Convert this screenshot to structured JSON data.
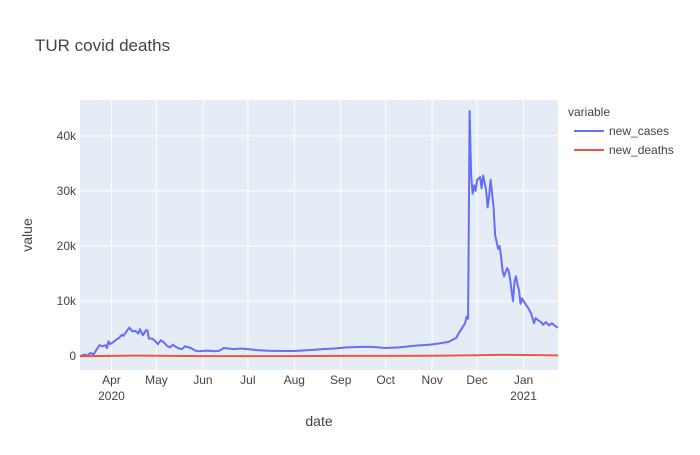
{
  "chart_data": {
    "type": "line",
    "title": "TUR covid deaths",
    "xlabel": "date",
    "ylabel": "value",
    "legend_title": "variable",
    "legend_position": "right",
    "grid": true,
    "x_range": [
      "2020-03-11",
      "2021-01-24"
    ],
    "ylim": [
      -2500,
      46500
    ],
    "y_ticks": [
      {
        "value": 0,
        "label": "0"
      },
      {
        "value": 10000,
        "label": "10k"
      },
      {
        "value": 20000,
        "label": "20k"
      },
      {
        "value": 30000,
        "label": "30k"
      },
      {
        "value": 40000,
        "label": "40k"
      }
    ],
    "x_ticks": [
      {
        "date": "2020-04-01",
        "label": "Apr",
        "sublabel": "2020"
      },
      {
        "date": "2020-05-01",
        "label": "May",
        "sublabel": ""
      },
      {
        "date": "2020-06-01",
        "label": "Jun",
        "sublabel": ""
      },
      {
        "date": "2020-07-01",
        "label": "Jul",
        "sublabel": ""
      },
      {
        "date": "2020-08-01",
        "label": "Aug",
        "sublabel": ""
      },
      {
        "date": "2020-09-01",
        "label": "Sep",
        "sublabel": ""
      },
      {
        "date": "2020-10-01",
        "label": "Oct",
        "sublabel": ""
      },
      {
        "date": "2020-11-01",
        "label": "Nov",
        "sublabel": ""
      },
      {
        "date": "2020-12-01",
        "label": "Dec",
        "sublabel": ""
      },
      {
        "date": "2021-01-01",
        "label": "Jan",
        "sublabel": "2021"
      }
    ],
    "series": [
      {
        "name": "new_cases",
        "color": "#636efa",
        "points": [
          [
            "2020-03-11",
            0
          ],
          [
            "2020-03-14",
            300
          ],
          [
            "2020-03-16",
            100
          ],
          [
            "2020-03-18",
            600
          ],
          [
            "2020-03-20",
            300
          ],
          [
            "2020-03-22",
            1200
          ],
          [
            "2020-03-24",
            2000
          ],
          [
            "2020-03-26",
            1800
          ],
          [
            "2020-03-28",
            2000
          ],
          [
            "2020-03-29",
            1500
          ],
          [
            "2020-03-30",
            2700
          ],
          [
            "2020-03-31",
            2200
          ],
          [
            "2020-04-02",
            2500
          ],
          [
            "2020-04-04",
            3000
          ],
          [
            "2020-04-06",
            3300
          ],
          [
            "2020-04-08",
            3900
          ],
          [
            "2020-04-09",
            3700
          ],
          [
            "2020-04-11",
            4500
          ],
          [
            "2020-04-13",
            5200
          ],
          [
            "2020-04-15",
            4500
          ],
          [
            "2020-04-17",
            4600
          ],
          [
            "2020-04-19",
            4100
          ],
          [
            "2020-04-20",
            4900
          ],
          [
            "2020-04-22",
            3800
          ],
          [
            "2020-04-24",
            4700
          ],
          [
            "2020-04-25",
            4700
          ],
          [
            "2020-04-26",
            3200
          ],
          [
            "2020-04-28",
            3200
          ],
          [
            "2020-04-30",
            2800
          ],
          [
            "2020-05-02",
            2200
          ],
          [
            "2020-05-04",
            2900
          ],
          [
            "2020-05-06",
            2500
          ],
          [
            "2020-05-08",
            1900
          ],
          [
            "2020-05-10",
            1600
          ],
          [
            "2020-05-12",
            2100
          ],
          [
            "2020-05-14",
            1700
          ],
          [
            "2020-05-16",
            1400
          ],
          [
            "2020-05-18",
            1300
          ],
          [
            "2020-05-20",
            1800
          ],
          [
            "2020-05-24",
            1500
          ],
          [
            "2020-05-27",
            1000
          ],
          [
            "2020-05-30",
            900
          ],
          [
            "2020-06-02",
            1000
          ],
          [
            "2020-06-05",
            1000
          ],
          [
            "2020-06-08",
            900
          ],
          [
            "2020-06-12",
            1000
          ],
          [
            "2020-06-15",
            1500
          ],
          [
            "2020-06-18",
            1400
          ],
          [
            "2020-06-22",
            1300
          ],
          [
            "2020-06-26",
            1400
          ],
          [
            "2020-07-01",
            1300
          ],
          [
            "2020-07-08",
            1100
          ],
          [
            "2020-07-15",
            1000
          ],
          [
            "2020-07-25",
            950
          ],
          [
            "2020-08-01",
            950
          ],
          [
            "2020-08-10",
            1100
          ],
          [
            "2020-08-20",
            1300
          ],
          [
            "2020-08-28",
            1400
          ],
          [
            "2020-09-05",
            1600
          ],
          [
            "2020-09-15",
            1700
          ],
          [
            "2020-09-22",
            1700
          ],
          [
            "2020-10-01",
            1500
          ],
          [
            "2020-10-10",
            1600
          ],
          [
            "2020-10-20",
            1900
          ],
          [
            "2020-10-30",
            2100
          ],
          [
            "2020-11-05",
            2300
          ],
          [
            "2020-11-12",
            2600
          ],
          [
            "2020-11-17",
            3300
          ],
          [
            "2020-11-20",
            4700
          ],
          [
            "2020-11-23",
            6000
          ],
          [
            "2020-11-24",
            7200
          ],
          [
            "2020-11-25",
            6800
          ],
          [
            "2020-11-26",
            44500
          ],
          [
            "2020-11-27",
            33000
          ],
          [
            "2020-11-28",
            29500
          ],
          [
            "2020-11-29",
            31000
          ],
          [
            "2020-11-30",
            30000
          ],
          [
            "2020-12-01",
            32000
          ],
          [
            "2020-12-03",
            32500
          ],
          [
            "2020-12-04",
            30500
          ],
          [
            "2020-12-05",
            32800
          ],
          [
            "2020-12-06",
            31500
          ],
          [
            "2020-12-07",
            30200
          ],
          [
            "2020-12-08",
            27000
          ],
          [
            "2020-12-09",
            29000
          ],
          [
            "2020-12-10",
            32000
          ],
          [
            "2020-12-12",
            27000
          ],
          [
            "2020-12-13",
            22000
          ],
          [
            "2020-12-15",
            19500
          ],
          [
            "2020-12-16",
            20000
          ],
          [
            "2020-12-17",
            18000
          ],
          [
            "2020-12-18",
            15500
          ],
          [
            "2020-12-19",
            14500
          ],
          [
            "2020-12-21",
            16000
          ],
          [
            "2020-12-22",
            15500
          ],
          [
            "2020-12-23",
            14000
          ],
          [
            "2020-12-24",
            12000
          ],
          [
            "2020-12-25",
            10000
          ],
          [
            "2020-12-26",
            13500
          ],
          [
            "2020-12-27",
            14500
          ],
          [
            "2020-12-28",
            13000
          ],
          [
            "2020-12-29",
            12000
          ],
          [
            "2020-12-30",
            9500
          ],
          [
            "2020-12-31",
            10500
          ],
          [
            "2021-01-01",
            10000
          ],
          [
            "2021-01-02",
            9600
          ],
          [
            "2021-01-04",
            8800
          ],
          [
            "2021-01-06",
            7800
          ],
          [
            "2021-01-08",
            6000
          ],
          [
            "2021-01-09",
            6900
          ],
          [
            "2021-01-11",
            6500
          ],
          [
            "2021-01-13",
            6100
          ],
          [
            "2021-01-14",
            5700
          ],
          [
            "2021-01-16",
            6200
          ],
          [
            "2021-01-18",
            5600
          ],
          [
            "2021-01-20",
            6000
          ],
          [
            "2021-01-22",
            5500
          ],
          [
            "2021-01-24",
            5200
          ]
        ]
      },
      {
        "name": "new_deaths",
        "color": "#ef553b",
        "points": [
          [
            "2020-03-11",
            0
          ],
          [
            "2020-03-25",
            40
          ],
          [
            "2020-04-10",
            90
          ],
          [
            "2020-04-20",
            110
          ],
          [
            "2020-05-10",
            60
          ],
          [
            "2020-06-01",
            30
          ],
          [
            "2020-07-01",
            20
          ],
          [
            "2020-08-01",
            20
          ],
          [
            "2020-09-01",
            50
          ],
          [
            "2020-10-01",
            60
          ],
          [
            "2020-11-01",
            80
          ],
          [
            "2020-11-20",
            140
          ],
          [
            "2020-12-01",
            190
          ],
          [
            "2020-12-20",
            250
          ],
          [
            "2021-01-01",
            230
          ],
          [
            "2021-01-15",
            180
          ],
          [
            "2021-01-24",
            140
          ]
        ]
      }
    ]
  }
}
